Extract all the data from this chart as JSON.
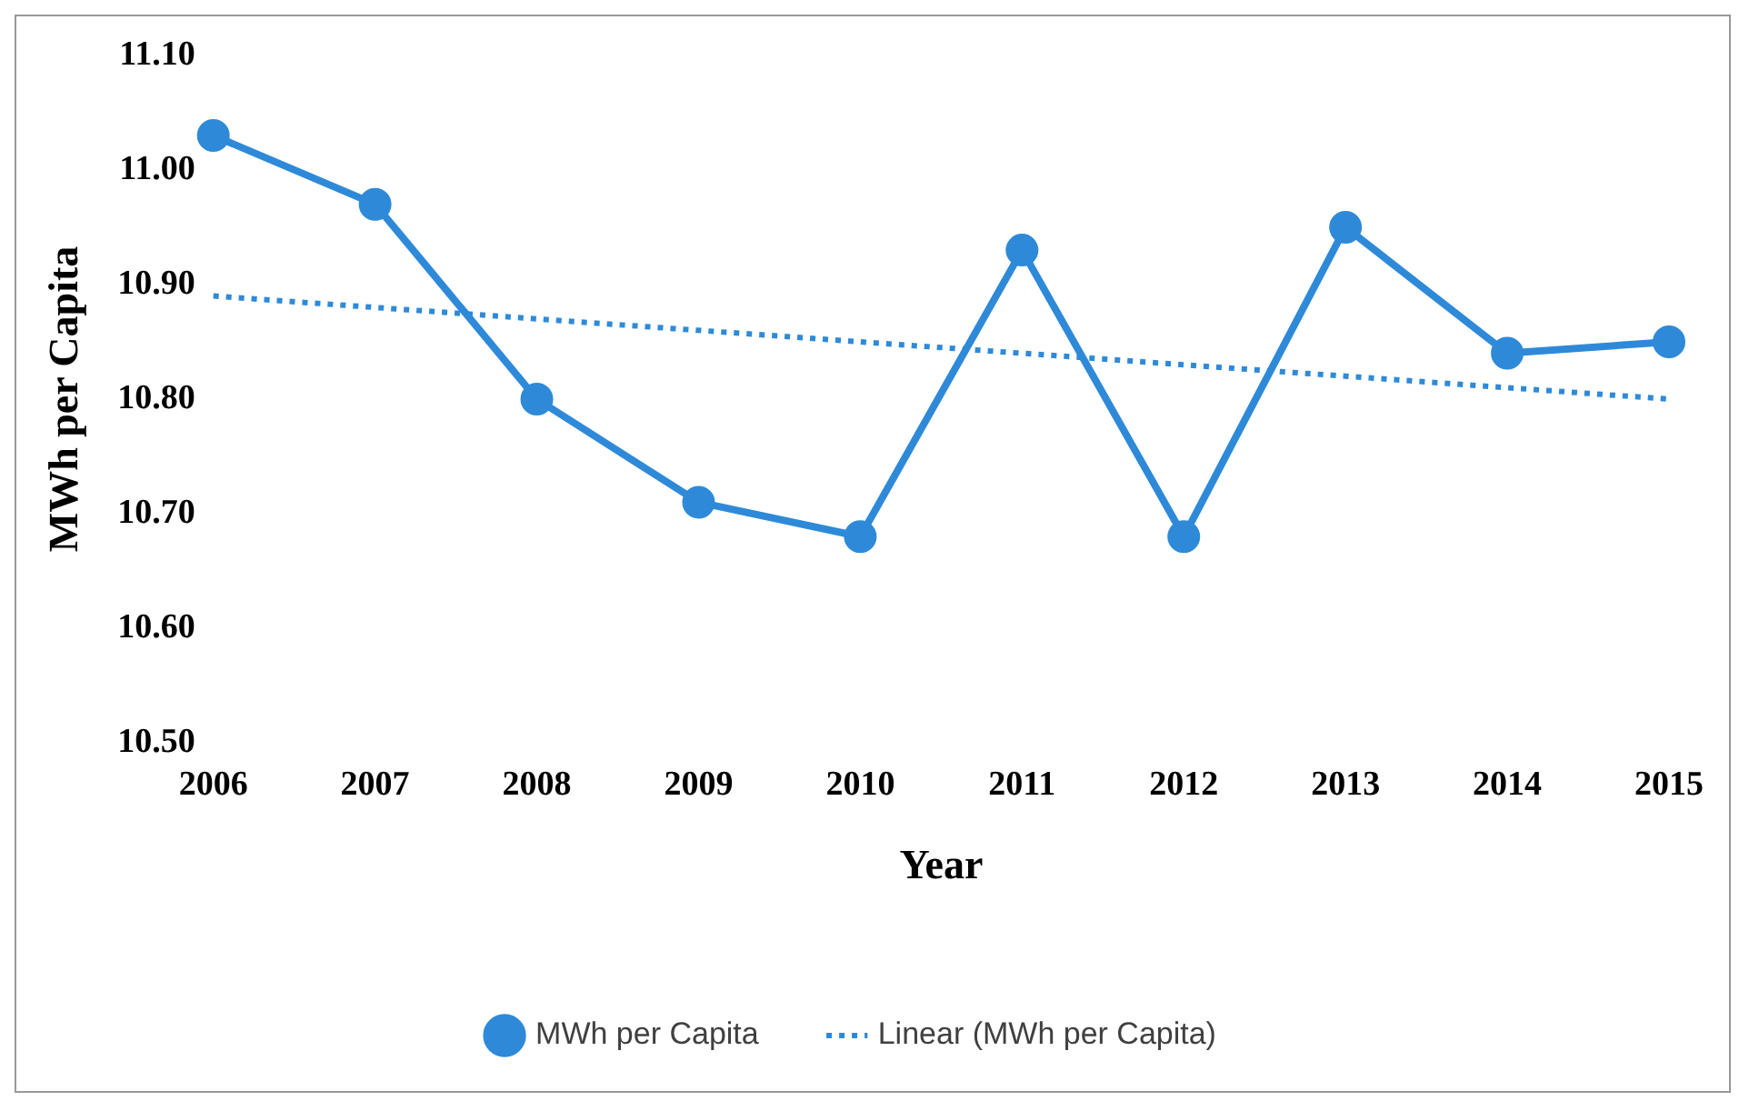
{
  "chart_data": {
    "type": "line",
    "xlabel": "Year",
    "ylabel": "MWh per Capita",
    "categories": [
      "2006",
      "2007",
      "2008",
      "2009",
      "2010",
      "2011",
      "2012",
      "2013",
      "2014",
      "2015"
    ],
    "series": [
      {
        "name": "MWh per Capita",
        "color": "#2e8ad8",
        "values": [
          11.03,
          10.97,
          10.8,
          10.71,
          10.68,
          10.93,
          10.68,
          10.95,
          10.84,
          10.85
        ],
        "marker": "circle",
        "line_style": "solid"
      },
      {
        "name": "Linear (MWh per Capita)",
        "color": "#2e8ad8",
        "type": "line",
        "values": [
          10.89,
          10.88,
          10.87,
          10.86,
          10.85,
          10.84,
          10.83,
          10.82,
          10.81,
          10.8
        ],
        "marker": "none",
        "line_style": "dotted"
      }
    ],
    "ylim": [
      10.5,
      11.1
    ],
    "yticks": [
      {
        "value": 10.5,
        "label": "10.50"
      },
      {
        "value": 10.6,
        "label": "10.60"
      },
      {
        "value": 10.7,
        "label": "10.70"
      },
      {
        "value": 10.8,
        "label": "10.80"
      },
      {
        "value": 10.9,
        "label": "10.90"
      },
      {
        "value": 11.0,
        "label": "11.00"
      },
      {
        "value": 11.1,
        "label": "11.10"
      }
    ],
    "grid": false,
    "legend": "bottom"
  }
}
